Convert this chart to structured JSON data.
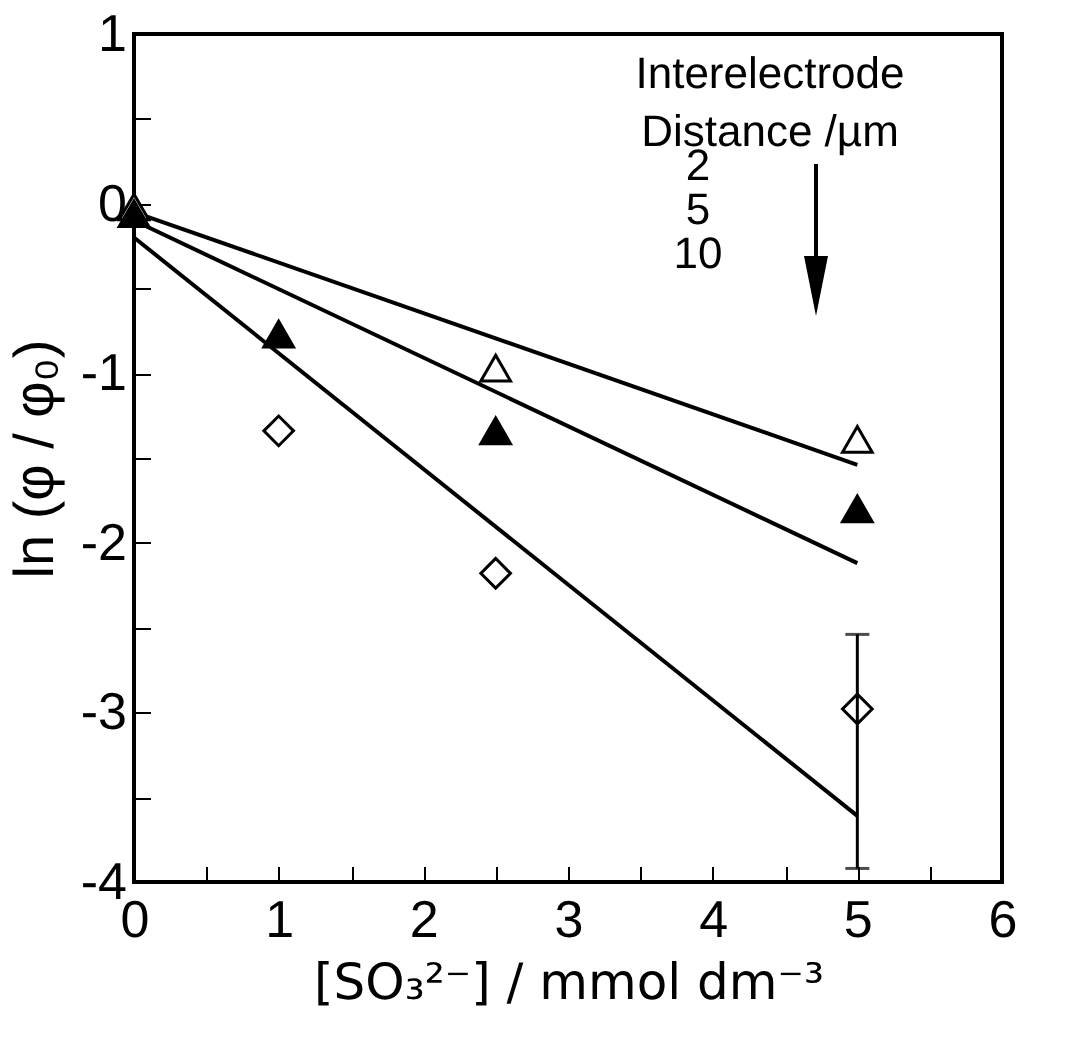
{
  "chart_data": {
    "type": "scatter",
    "xlabel": "[SO₃²⁻] / mmol dm⁻³",
    "ylabel": "ln (φ / φ₀)",
    "legend_title": "Interelectrode Distance /µm",
    "annotations": [
      "2",
      "5",
      "10"
    ],
    "x": [
      0,
      1,
      2.5,
      5
    ],
    "series": [
      {
        "type": "scatter",
        "marker": "triangle",
        "color": "#ffffff",
        "x": [
          0,
          2.5,
          5
        ],
        "values": [
          -0.02,
          -0.97,
          -1.39
        ]
      },
      {
        "type": "scatter",
        "marker": "triangle",
        "color": "#000000",
        "values": [
          -0.06,
          -0.77,
          -1.34,
          -1.8
        ]
      },
      {
        "type": "scatter",
        "marker": "diamond",
        "color": "#ffffff",
        "values": [
          null,
          -1.34,
          -2.18,
          -2.98
        ],
        "errors": [
          null,
          null,
          null,
          [
            -3.92,
            -2.54
          ]
        ]
      },
      {
        "type": "line",
        "color": "#000000",
        "x": [
          0,
          5
        ],
        "values": [
          -0.05,
          -1.54
        ]
      },
      {
        "type": "line",
        "color": "#000000",
        "x": [
          0,
          5
        ],
        "values": [
          -0.1,
          -2.12
        ]
      },
      {
        "type": "line",
        "color": "#000000",
        "x": [
          0,
          5
        ],
        "values": [
          -0.2,
          -3.61
        ]
      }
    ],
    "xlim": [
      0,
      6
    ],
    "ylim": [
      -4,
      1
    ],
    "xticks": [
      0,
      {
        "value": 0.5,
        "label": null
      },
      1,
      {
        "value": 1.5,
        "label": null
      },
      2,
      {
        "value": 2.5,
        "label": null
      },
      3,
      {
        "value": 3.5,
        "label": null
      },
      4,
      {
        "value": 4.5,
        "label": null
      },
      5,
      {
        "value": 5.5,
        "label": null
      },
      6
    ],
    "yticks": [
      -4,
      {
        "value": -3.5,
        "label": null
      },
      -3,
      {
        "value": -2.5,
        "label": null
      },
      -2,
      {
        "value": -1.5,
        "label": null
      },
      -1,
      {
        "value": -0.5,
        "label": null
      },
      0,
      {
        "value": 0.5,
        "label": null
      },
      1
    ],
    "grid": false
  }
}
